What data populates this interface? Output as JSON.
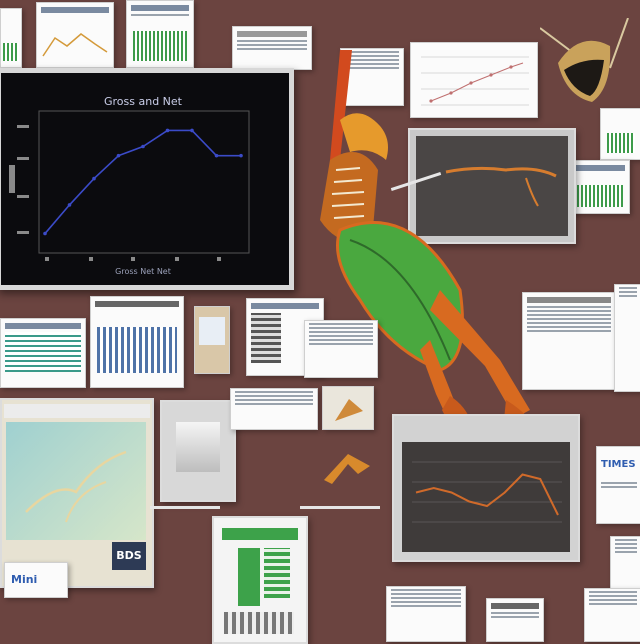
{
  "main_chart": {
    "title": "Gross and Net",
    "xlabel": "Gross Net Net",
    "chart_data": {
      "type": "line",
      "x": [
        1,
        2,
        3,
        4,
        5,
        6,
        7,
        8,
        9
      ],
      "values": [
        0.1,
        0.35,
        0.58,
        0.78,
        0.86,
        1.0,
        1.0,
        0.78,
        0.78
      ],
      "ylim": [
        0,
        1.1
      ],
      "color": "#3b4bc8"
    }
  },
  "scope_chart": {
    "chart_data": {
      "type": "line",
      "values": [
        0.55,
        0.6,
        0.55,
        0.45,
        0.4,
        0.55,
        0.75,
        0.7,
        0.3
      ],
      "ylim": [
        0,
        1
      ],
      "color": "#d06a2a"
    }
  },
  "badges": {
    "bottom_left": "BDS",
    "bottom_left_blue": "Mini",
    "right_blue": "TIMES"
  },
  "colors": {
    "background": "#6b4440",
    "leaf_green": "#4aa83f",
    "insect_orange": "#d86a20"
  }
}
